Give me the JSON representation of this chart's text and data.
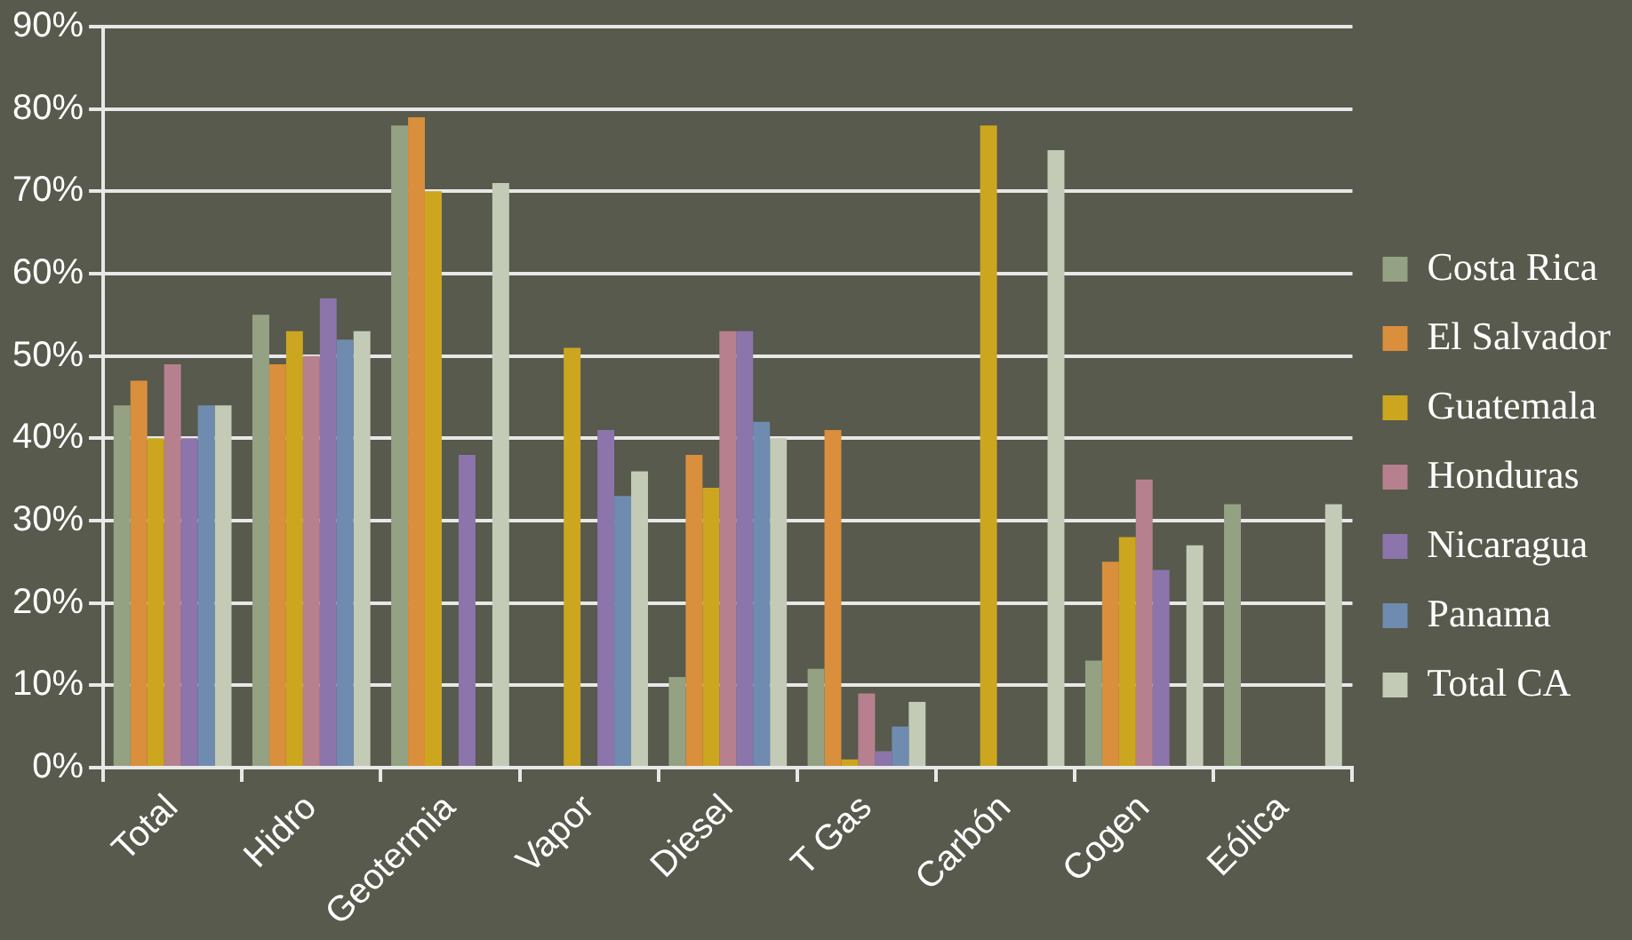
{
  "chart_data": {
    "type": "bar",
    "categories": [
      "Total",
      "Hidro",
      "Geotermia",
      "Vapor",
      "Diesel",
      "T Gas",
      "Carbón",
      "Cogen",
      "Eólica"
    ],
    "series": [
      {
        "name": "Costa Rica",
        "color": "#94a283",
        "values": [
          44,
          55,
          78,
          null,
          11,
          12,
          null,
          13,
          32
        ]
      },
      {
        "name": "El Salvador",
        "color": "#d98f3c",
        "values": [
          47,
          49,
          79,
          null,
          38,
          41,
          null,
          25,
          null
        ]
      },
      {
        "name": "Guatemala",
        "color": "#cda620",
        "values": [
          40,
          53,
          70,
          51,
          34,
          1,
          78,
          28,
          null
        ]
      },
      {
        "name": "Honduras",
        "color": "#b7808f",
        "values": [
          49,
          50,
          null,
          null,
          53,
          9,
          null,
          35,
          null
        ]
      },
      {
        "name": "Nicaragua",
        "color": "#8b75ab",
        "values": [
          40,
          57,
          38,
          41,
          53,
          2,
          null,
          24,
          null
        ]
      },
      {
        "name": "Panama",
        "color": "#6f8bb0",
        "values": [
          44,
          52,
          null,
          33,
          42,
          5,
          null,
          null,
          null
        ]
      },
      {
        "name": "Total CA",
        "color": "#c3cbb6",
        "values": [
          44,
          53,
          71,
          36,
          40,
          8,
          75,
          27,
          32
        ]
      }
    ],
    "ylim": [
      0,
      90
    ],
    "yticks": [
      {
        "value": 0,
        "label": "0%"
      },
      {
        "value": 10,
        "label": "10%"
      },
      {
        "value": 20,
        "label": "20%"
      },
      {
        "value": 30,
        "label": "30%"
      },
      {
        "value": 40,
        "label": "40%"
      },
      {
        "value": 50,
        "label": "50%"
      },
      {
        "value": 60,
        "label": "60%"
      },
      {
        "value": 70,
        "label": "70%"
      },
      {
        "value": 80,
        "label": "80%"
      },
      {
        "value": 90,
        "label": "90%"
      }
    ],
    "grid": "y",
    "legend": "right"
  }
}
